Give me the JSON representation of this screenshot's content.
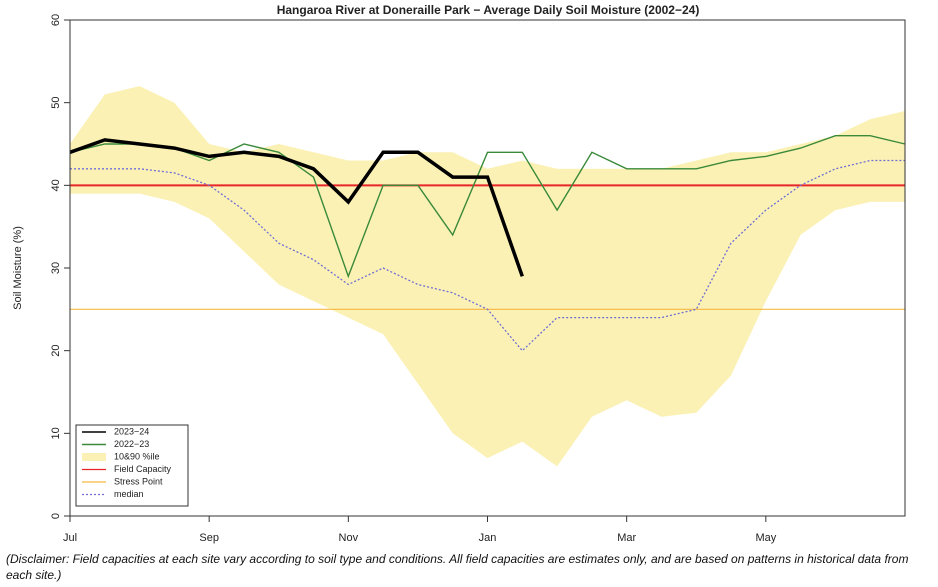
{
  "chart_data": {
    "type": "line",
    "title": "Hangaroa River at Doneraille Park − Average Daily Soil Moisture (2002−24)",
    "y_label": "Soil Moisture (%)",
    "categories": [
      "Jul",
      null,
      null,
      null,
      "Sep",
      null,
      null,
      null,
      "Nov",
      null,
      null,
      null,
      "Jan",
      null,
      null,
      null,
      "Mar",
      null,
      null,
      null,
      "May",
      null,
      null,
      null,
      null
    ],
    "ylim": [
      0,
      60
    ],
    "yticks": [
      0,
      10,
      20,
      30,
      40,
      50,
      60
    ],
    "series": [
      {
        "name": "2023−24",
        "style": "line",
        "color": "#000000",
        "values": [
          44,
          45.5,
          45,
          44.5,
          43.5,
          44,
          43.5,
          42,
          38,
          44,
          44,
          41,
          41,
          29,
          null,
          null,
          null,
          null,
          null,
          null,
          null,
          null,
          null,
          null,
          null
        ]
      },
      {
        "name": "2022−23",
        "style": "line",
        "color": "#3a8a3a",
        "values": [
          44,
          45,
          45,
          44.5,
          43,
          45,
          44,
          41,
          29,
          40,
          40,
          34,
          44,
          44,
          37,
          44,
          42,
          42,
          42,
          43,
          43.5,
          44.5,
          46,
          46,
          45
        ]
      },
      {
        "name": "10&90 %ile",
        "style": "band",
        "color": "#fbf1b4",
        "lower": [
          39,
          39,
          39,
          38,
          36,
          32,
          28,
          26,
          24,
          22,
          16,
          10,
          7,
          9,
          6,
          12,
          14,
          12,
          12.5,
          17,
          26,
          34,
          37,
          38,
          38
        ],
        "upper": [
          45,
          51,
          52,
          50,
          45,
          44,
          45,
          44,
          43,
          43,
          44,
          44,
          42,
          43,
          42,
          42,
          42,
          42,
          43,
          44,
          44,
          45,
          46,
          48,
          49
        ]
      },
      {
        "name": "Field Capacity",
        "style": "hline",
        "color": "#e8262a",
        "value": 40
      },
      {
        "name": "Stress Point",
        "style": "hline",
        "color": "#f5b942",
        "value": 25
      },
      {
        "name": "median",
        "style": "dotted",
        "color": "#6f6fd6",
        "values": [
          42,
          42,
          42,
          41.5,
          40,
          37,
          33,
          31,
          28,
          30,
          28,
          27,
          25,
          20,
          24,
          24,
          24,
          24,
          25,
          33,
          37,
          40,
          42,
          43,
          43
        ]
      }
    ],
    "disclaimer": "(Disclaimer: Field capacities at each site vary according to soil type and conditions. All field capacities are estimates only, and are based on patterns in historical data from each site.)"
  }
}
